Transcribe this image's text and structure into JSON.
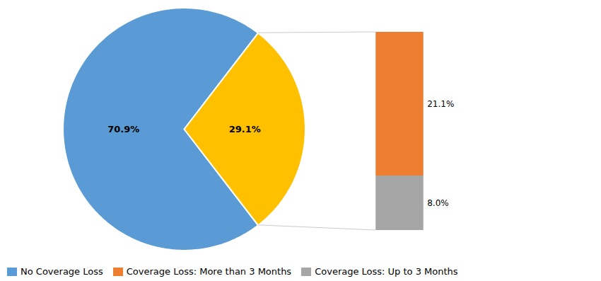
{
  "chart_data": [
    {
      "type": "pie",
      "categories": [
        "No Coverage Loss",
        null
      ],
      "values": [
        70.9,
        29.1
      ],
      "value_labels": [
        "70.9%",
        "29.1%"
      ],
      "colors": [
        "#5B9BD5",
        "#FFC000"
      ],
      "data_labels": true,
      "legend": "lower left"
    },
    {
      "type": "bar",
      "stacked": true,
      "categories": [
        null
      ],
      "series": [
        {
          "name": "Coverage Loss: Up to 3 Months",
          "color": "#A5A5A5",
          "values": [
            8.0
          ],
          "value_labels": [
            "8.0%"
          ]
        },
        {
          "name": "Coverage Loss: More than 3 Months",
          "color": "#ED7D31",
          "values": [
            21.1
          ],
          "value_labels": [
            "21.1%"
          ]
        }
      ],
      "ylim": [
        0,
        29.1
      ],
      "tick_labels": false,
      "data_labels": true,
      "legend": "lower left"
    }
  ]
}
